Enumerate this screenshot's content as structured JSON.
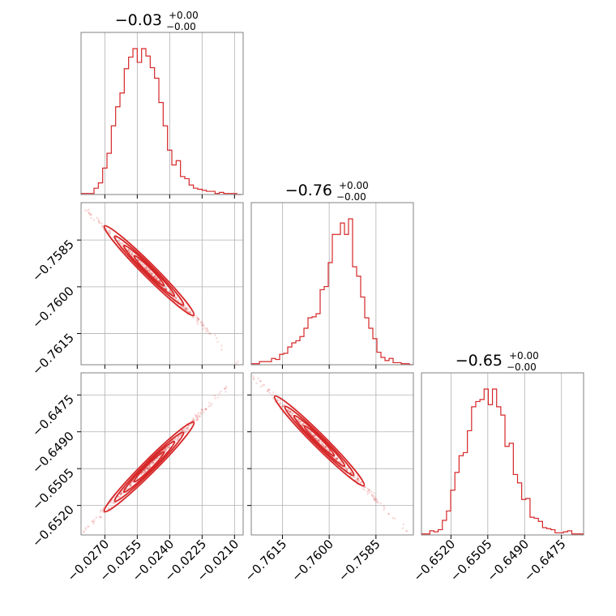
{
  "chart_data": {
    "type": "corner",
    "color": "#d62728",
    "grid": true,
    "parameters": [
      {
        "title": "−0.03",
        "title_err_plus": "+0.00",
        "title_err_minus": "−0.00",
        "range": [
          -0.0281,
          -0.0206
        ],
        "ticks": [
          -0.027,
          -0.0255,
          -0.024,
          -0.0225,
          -0.021
        ],
        "tick_labels": [
          "−0.0270",
          "−0.0255",
          "−0.0240",
          "−0.0225",
          "−0.0210"
        ],
        "hist": {
          "bin_edges": [
            -0.0281,
            -0.0279,
            -0.0277,
            -0.0275,
            -0.0273,
            -0.0271,
            -0.0269,
            -0.0267,
            -0.0265,
            -0.0263,
            -0.0261,
            -0.0259,
            -0.0257,
            -0.0255,
            -0.0253,
            -0.0251,
            -0.0249,
            -0.0247,
            -0.0245,
            -0.0243,
            -0.0241,
            -0.0239,
            -0.0237,
            -0.0235,
            -0.0233,
            -0.0231,
            -0.0229,
            -0.0227,
            -0.0225,
            -0.0223,
            -0.0221,
            -0.0219,
            -0.0217,
            -0.0215,
            -0.0213,
            -0.0211,
            -0.0209,
            -0.0207
          ],
          "counts": [
            1,
            1,
            1,
            6,
            11,
            25,
            39,
            65,
            83,
            96,
            119,
            130,
            138,
            125,
            138,
            131,
            120,
            110,
            87,
            65,
            42,
            28,
            32,
            17,
            15,
            9,
            6,
            5,
            4,
            3,
            3,
            1,
            2,
            1,
            1,
            1,
            0
          ]
        }
      },
      {
        "title": "−0.76",
        "title_err_plus": "+0.00",
        "title_err_minus": "−0.00",
        "range": [
          -0.7625,
          -0.7573
        ],
        "ticks": [
          -0.7615,
          -0.76,
          -0.7585
        ],
        "tick_labels": [
          "−0.7615",
          "−0.7600",
          "−0.7585"
        ],
        "hist": {
          "bin_edges": [
            -0.7625,
            -0.76237,
            -0.76224,
            -0.76211,
            -0.76198,
            -0.76185,
            -0.76172,
            -0.76159,
            -0.76146,
            -0.76133,
            -0.7612,
            -0.76107,
            -0.76094,
            -0.76081,
            -0.76068,
            -0.76055,
            -0.76042,
            -0.76029,
            -0.76016,
            -0.76003,
            -0.7599,
            -0.75977,
            -0.75964,
            -0.75951,
            -0.75938,
            -0.75925,
            -0.75912,
            -0.75899,
            -0.75886,
            -0.75873,
            -0.7586,
            -0.75847,
            -0.75834,
            -0.75821,
            -0.75808,
            -0.75795,
            -0.75782,
            -0.75769,
            -0.75756,
            -0.75743,
            -0.7573
          ],
          "counts": [
            1,
            1,
            3,
            3,
            3,
            6,
            5,
            10,
            11,
            17,
            21,
            23,
            27,
            35,
            45,
            46,
            49,
            72,
            75,
            98,
            125,
            125,
            136,
            125,
            140,
            94,
            85,
            65,
            45,
            35,
            25,
            12,
            7,
            4,
            6,
            2,
            2,
            1,
            1,
            0
          ]
        }
      },
      {
        "title": "−0.65",
        "title_err_plus": "+0.00",
        "title_err_minus": "−0.00",
        "range": [
          -0.6532,
          -0.6466
        ],
        "ticks": [
          -0.652,
          -0.6505,
          -0.649,
          -0.6475
        ],
        "tick_labels": [
          "−0.6520",
          "−0.6505",
          "−0.6490",
          "−0.6475"
        ],
        "hist": {
          "bin_edges": [
            -0.6532,
            -0.65303,
            -0.65286,
            -0.65269,
            -0.65252,
            -0.65235,
            -0.65218,
            -0.65201,
            -0.65184,
            -0.65167,
            -0.6515,
            -0.65133,
            -0.65116,
            -0.65099,
            -0.65082,
            -0.65065,
            -0.65048,
            -0.65031,
            -0.65014,
            -0.64997,
            -0.6498,
            -0.64963,
            -0.64946,
            -0.64929,
            -0.64912,
            -0.64895,
            -0.64878,
            -0.64861,
            -0.64844,
            -0.64827,
            -0.6481,
            -0.64793,
            -0.64776,
            -0.64759,
            -0.64742,
            -0.64725,
            -0.64708,
            -0.64691,
            -0.64674,
            -0.6466
          ],
          "counts": [
            1,
            1,
            4,
            3,
            5,
            14,
            23,
            43,
            60,
            76,
            79,
            100,
            123,
            128,
            130,
            140,
            125,
            140,
            123,
            115,
            85,
            88,
            58,
            50,
            34,
            35,
            17,
            16,
            13,
            7,
            6,
            5,
            2,
            2,
            3,
            4,
            1,
            1,
            1
          ]
        }
      }
    ],
    "pairs": [
      {
        "x": 0,
        "y": 1,
        "relation": "negative",
        "y_ticks": [
          -0.7585,
          -0.76,
          -0.7615
        ],
        "y_tick_labels": [
          "−0.7585",
          "−0.7600",
          "−0.7615"
        ]
      },
      {
        "x": 0,
        "y": 2,
        "relation": "positive",
        "y_ticks": [
          -0.6475,
          -0.649,
          -0.6505,
          -0.652
        ],
        "y_tick_labels": [
          "−0.6475",
          "−0.6490",
          "−0.6505",
          "−0.6520"
        ]
      },
      {
        "x": 1,
        "y": 2,
        "relation": "negative"
      }
    ]
  }
}
